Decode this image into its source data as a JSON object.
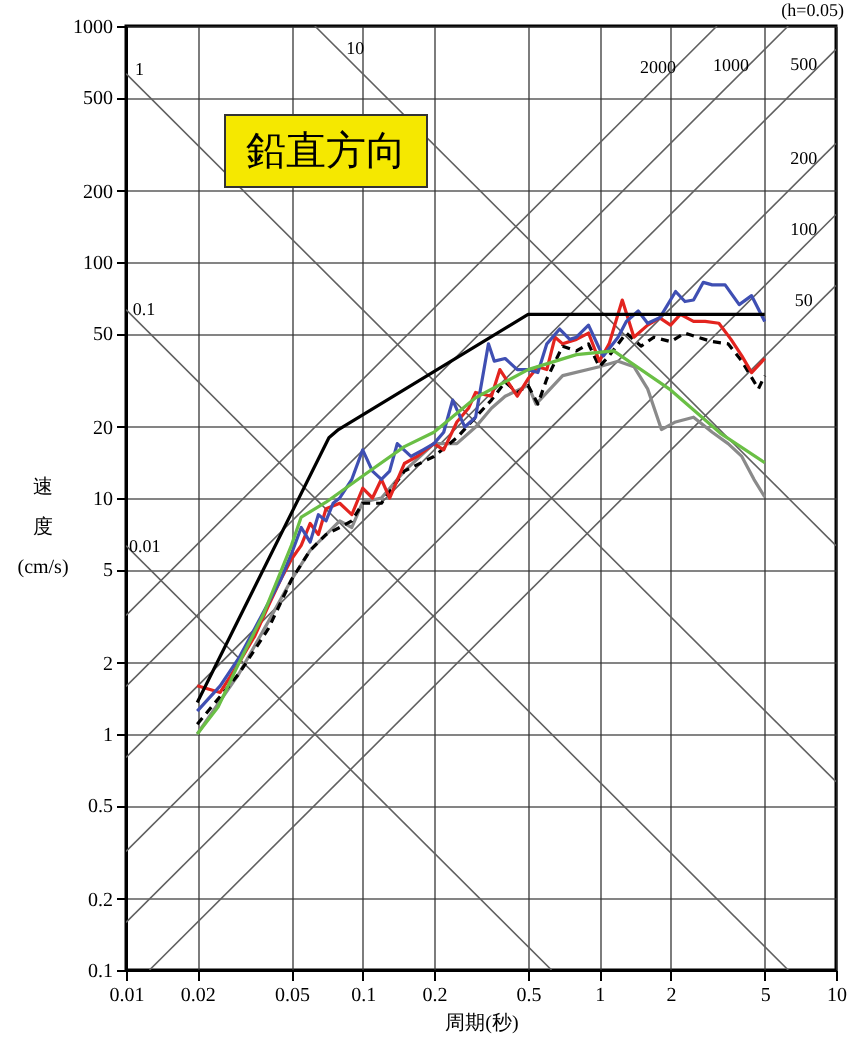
{
  "chart_data": {
    "type": "line",
    "title": "鉛直方向",
    "xlabel": "周期(秒)",
    "ylabel": "速度(cm/s)",
    "log": "xy",
    "grid": true,
    "xlim": [
      0.01,
      10
    ],
    "ylim": [
      0.1,
      1000
    ],
    "xticks": [
      0.01,
      0.02,
      0.05,
      0.1,
      0.2,
      0.5,
      1,
      2,
      5,
      10
    ],
    "yticks": [
      0.1,
      0.2,
      0.5,
      1,
      2,
      5,
      10,
      20,
      50,
      100,
      200,
      500,
      1000
    ],
    "series": [
      {
        "color": "#606060",
        "x": [
          0.01,
          0.628
        ],
        "values": [
          6.28,
          0.1
        ]
      },
      {
        "color": "#606060",
        "x": [
          0.01,
          6.28
        ],
        "values": [
          62.8,
          0.1
        ]
      },
      {
        "color": "#606060",
        "x": [
          0.01,
          10
        ],
        "values": [
          628,
          0.628
        ]
      },
      {
        "color": "#606060",
        "x": [
          0.0628,
          10
        ],
        "values": [
          1000,
          6.28
        ]
      },
      {
        "color": "#606060",
        "x": [
          0.01257,
          10
        ],
        "values": [
          0.1,
          79.6
        ]
      },
      {
        "color": "#606060",
        "x": [
          0.01,
          10
        ],
        "values": [
          0.159,
          159
        ]
      },
      {
        "color": "#606060",
        "x": [
          0.01,
          10
        ],
        "values": [
          0.318,
          318
        ]
      },
      {
        "color": "#606060",
        "x": [
          0.01,
          10
        ],
        "values": [
          0.796,
          796
        ]
      },
      {
        "color": "#606060",
        "x": [
          0.01,
          6.28
        ],
        "values": [
          1.59,
          1000
        ]
      },
      {
        "color": "#606060",
        "x": [
          0.01,
          3.14
        ],
        "values": [
          3.18,
          1000
        ]
      },
      {
        "color": "#8a8a8a",
        "x": [
          0.02,
          0.03,
          0.04,
          0.05,
          0.06,
          0.07,
          0.08,
          0.09,
          0.1,
          0.12,
          0.15,
          0.2,
          0.25,
          0.3,
          0.35,
          0.4,
          0.5,
          0.54,
          0.7,
          1,
          1.2,
          1.4,
          1.6,
          1.83,
          2.1,
          2.5,
          3,
          3.5,
          4,
          4.5,
          5
        ],
        "values": [
          1.0,
          1.8,
          3,
          4.5,
          6,
          7,
          8,
          7.5,
          9.6,
          10,
          13,
          17,
          17,
          20,
          24,
          27,
          30,
          25,
          33,
          36,
          38,
          36,
          29,
          19.5,
          21,
          22,
          19,
          17,
          15,
          12,
          10.1
        ]
      },
      {
        "color": "#000000",
        "line_style": "dashed",
        "x": [
          0.02,
          0.03,
          0.04,
          0.05,
          0.06,
          0.07,
          0.08,
          0.09,
          0.1,
          0.12,
          0.15,
          0.2,
          0.25,
          0.3,
          0.35,
          0.4,
          0.45,
          0.5,
          0.55,
          0.6,
          0.7,
          0.8,
          0.9,
          1.0,
          1.1,
          1.3,
          1.5,
          1.7,
          2,
          2.3,
          2.6,
          3,
          3.5,
          4,
          4.7,
          5
        ],
        "values": [
          1.1,
          1.8,
          2.8,
          4.5,
          6,
          7,
          7.5,
          8,
          9.5,
          9.5,
          13,
          15,
          18,
          22,
          26,
          31,
          28,
          30,
          25,
          32,
          44,
          42,
          45,
          36,
          40,
          50,
          44,
          48,
          46,
          50,
          48,
          46,
          45,
          38,
          29,
          33
        ]
      },
      {
        "color": "#e3241f",
        "x": [
          0.02,
          0.025,
          0.03,
          0.035,
          0.04,
          0.045,
          0.05,
          0.055,
          0.06,
          0.065,
          0.07,
          0.08,
          0.09,
          0.1,
          0.11,
          0.12,
          0.13,
          0.15,
          0.17,
          0.2,
          0.22,
          0.25,
          0.28,
          0.3,
          0.35,
          0.38,
          0.42,
          0.45,
          0.5,
          0.55,
          0.6,
          0.65,
          0.7,
          0.8,
          0.9,
          1.0,
          1.1,
          1.25,
          1.4,
          1.6,
          1.8,
          2.0,
          2.2,
          2.5,
          2.8,
          3.2,
          3.6,
          4.0,
          4.4,
          5
        ],
        "values": [
          1.6,
          1.5,
          2.0,
          2.6,
          3.5,
          4.5,
          5.5,
          6.3,
          7.8,
          7,
          9,
          9.5,
          8.5,
          11,
          10,
          12,
          10,
          14,
          15,
          17,
          16,
          21,
          24,
          28,
          27,
          35,
          30,
          27,
          32,
          36,
          35,
          48,
          45,
          47,
          50,
          38,
          45,
          69,
          48,
          54,
          58,
          54,
          60,
          56,
          56,
          55,
          47,
          40,
          34,
          39
        ]
      },
      {
        "color": "#3f4fb3",
        "x": [
          0.02,
          0.025,
          0.03,
          0.035,
          0.04,
          0.045,
          0.05,
          0.055,
          0.06,
          0.065,
          0.07,
          0.075,
          0.08,
          0.09,
          0.1,
          0.11,
          0.12,
          0.13,
          0.14,
          0.16,
          0.18,
          0.2,
          0.22,
          0.24,
          0.27,
          0.3,
          0.34,
          0.36,
          0.4,
          0.45,
          0.5,
          0.55,
          0.6,
          0.68,
          0.75,
          0.8,
          0.9,
          1.0,
          1.04,
          1.2,
          1.3,
          1.46,
          1.6,
          1.8,
          2.1,
          2.3,
          2.5,
          2.75,
          3.0,
          3.4,
          3.9,
          4.4,
          5
        ],
        "values": [
          1.25,
          1.6,
          2.1,
          2.8,
          3.6,
          4.5,
          5.8,
          7.5,
          6.5,
          8.5,
          8,
          9.5,
          10,
          12,
          16,
          13,
          12,
          13,
          17,
          15,
          16,
          17,
          19,
          26,
          20,
          22,
          45,
          38,
          39,
          35,
          35,
          34,
          45,
          52,
          47,
          48,
          54,
          43,
          40,
          48,
          56,
          62,
          55,
          58,
          75,
          68,
          69,
          82,
          80,
          80,
          66,
          72,
          56
        ]
      },
      {
        "color": "#6abf45",
        "x": [
          0.02,
          0.0245,
          0.03,
          0.038,
          0.05,
          0.055,
          0.07,
          0.1,
          0.15,
          0.2,
          0.3,
          0.5,
          0.8,
          1.15,
          2,
          3.25,
          5
        ],
        "values": [
          1.0,
          1.3,
          2.0,
          3.2,
          6.3,
          8.3,
          9.6,
          12.4,
          16.5,
          19,
          26.6,
          35,
          40.5,
          42,
          28.7,
          18.8,
          14.1
        ]
      },
      {
        "color": "#000000",
        "x": [
          0.02,
          0.072,
          0.079,
          0.5,
          5
        ],
        "values": [
          1.36,
          18,
          19.5,
          60,
          60
        ]
      }
    ],
    "annotations": [
      {
        "text": "1",
        "x": 0.0114,
        "y": 551
      },
      {
        "text": "10",
        "x": 0.093,
        "y": 676
      },
      {
        "text": "0.1",
        "x": 0.0119,
        "y": 52.8
      },
      {
        "text": "0.01",
        "x": 0.012,
        "y": 5.23
      },
      {
        "text": "2000",
        "x": 1.77,
        "y": 563
      },
      {
        "text": "1000",
        "x": 3.6,
        "y": 573
      },
      {
        "text": "500",
        "x": 7.3,
        "y": 581
      },
      {
        "text": "200",
        "x": 7.3,
        "y": 232
      },
      {
        "text": "100",
        "x": 7.3,
        "y": 116
      },
      {
        "text": "50",
        "x": 7.3,
        "y": 58
      },
      "(h=0.05)"
    ]
  }
}
